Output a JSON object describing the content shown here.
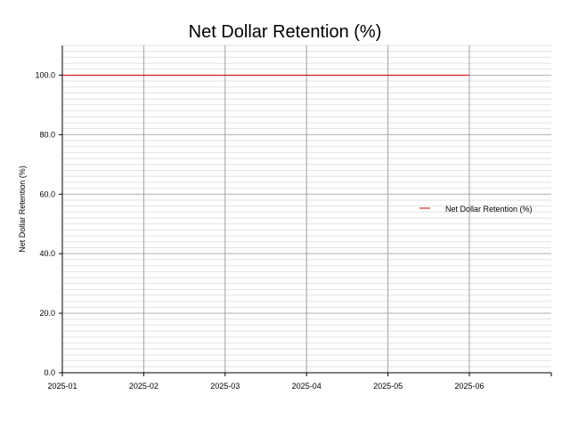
{
  "chart_data": {
    "type": "line",
    "title": "Net Dollar Retention (%)",
    "xlabel": "",
    "ylabel": "Net Dollar Retention (%)",
    "x": [
      "2025-01",
      "2025-02",
      "2025-03",
      "2025-04",
      "2025-05",
      "2025-06"
    ],
    "x_ticks": [
      "2025-01",
      "2025-02",
      "2025-03",
      "2025-04",
      "2025-05",
      "2025-06"
    ],
    "y_ticks": [
      "0.0",
      "20.0",
      "40.0",
      "60.0",
      "80.0",
      "100.0"
    ],
    "ylim": [
      0,
      110
    ],
    "grid": true,
    "legend_position": "center-right",
    "series": [
      {
        "name": "Net Dollar Retention (%)",
        "color": "#cc0000",
        "values": [
          100.0,
          100.0,
          100.0,
          100.0,
          100.0,
          100.0
        ]
      }
    ]
  }
}
